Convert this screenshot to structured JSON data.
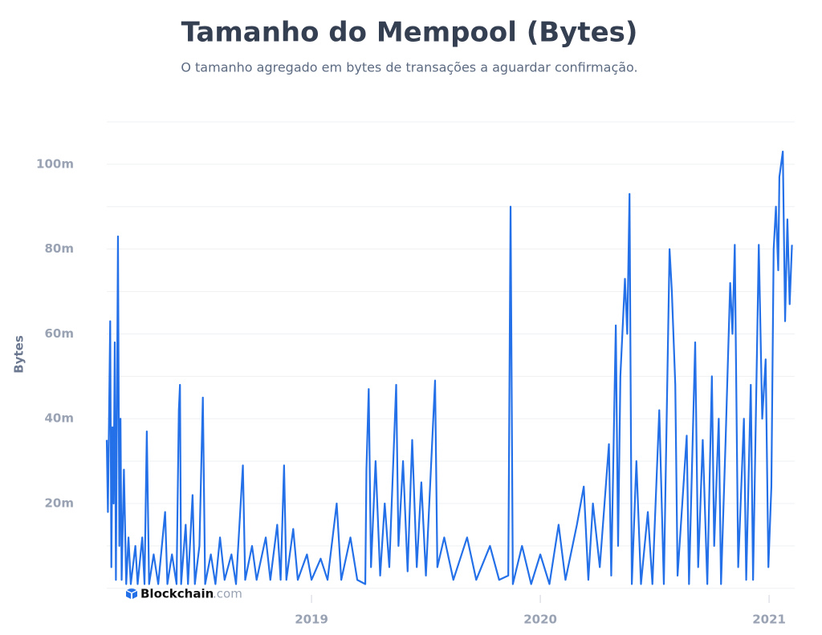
{
  "chart_data": {
    "type": "line",
    "title": "Tamanho do Mempool (Bytes)",
    "subtitle": "O tamanho agregado em bytes de transações a aguardar confirmação.",
    "y_axis_label": "Bytes",
    "watermark": {
      "brand": "Blockchain",
      "suffix": ".com"
    },
    "x": [
      2018.105,
      2018.11,
      2018.12,
      2018.125,
      2018.13,
      2018.135,
      2018.14,
      2018.145,
      2018.154,
      2018.16,
      2018.165,
      2018.17,
      2018.18,
      2018.19,
      2018.2,
      2018.21,
      2018.23,
      2018.24,
      2018.26,
      2018.27,
      2018.28,
      2018.29,
      2018.31,
      2018.33,
      2018.36,
      2018.37,
      2018.39,
      2018.41,
      2018.42,
      2018.425,
      2018.43,
      2018.45,
      2018.46,
      2018.48,
      2018.49,
      2018.51,
      2018.525,
      2018.535,
      2018.56,
      2018.58,
      2018.6,
      2018.62,
      2018.65,
      2018.67,
      2018.7,
      2018.71,
      2018.74,
      2018.76,
      2018.8,
      2018.82,
      2018.85,
      2018.865,
      2018.88,
      2018.89,
      2018.92,
      2018.94,
      2018.98,
      2019.0,
      2019.04,
      2019.07,
      2019.11,
      2019.13,
      2019.17,
      2019.2,
      2019.235,
      2019.24,
      2019.25,
      2019.26,
      2019.28,
      2019.3,
      2019.32,
      2019.34,
      2019.37,
      2019.38,
      2019.4,
      2019.42,
      2019.44,
      2019.46,
      2019.48,
      2019.5,
      2019.54,
      2019.55,
      2019.58,
      2019.62,
      2019.68,
      2019.72,
      2019.78,
      2019.82,
      2019.86,
      2019.87,
      2019.88,
      2019.92,
      2019.96,
      2020.0,
      2020.04,
      2020.08,
      2020.11,
      2020.16,
      2020.19,
      2020.21,
      2020.23,
      2020.26,
      2020.3,
      2020.31,
      2020.33,
      2020.34,
      2020.35,
      2020.37,
      2020.38,
      2020.39,
      2020.4,
      2020.42,
      2020.44,
      2020.47,
      2020.49,
      2020.52,
      2020.54,
      2020.565,
      2020.575,
      2020.59,
      2020.6,
      2020.64,
      2020.65,
      2020.677,
      2020.69,
      2020.71,
      2020.73,
      2020.75,
      2020.76,
      2020.78,
      2020.79,
      2020.81,
      2020.83,
      2020.84,
      2020.85,
      2020.865,
      2020.89,
      2020.9,
      2020.92,
      2020.93,
      2020.955,
      2020.97,
      2020.985,
      2020.997,
      2021.01,
      2021.02,
      2021.03,
      2021.04,
      2021.045,
      2021.06,
      2021.07,
      2021.08,
      2021.09,
      2021.1
    ],
    "series": [
      {
        "name": "Bytes",
        "color": "#2470e8",
        "values": [
          35,
          18,
          63,
          5,
          38,
          20,
          58,
          2,
          83,
          10,
          40,
          2,
          28,
          1,
          12,
          1,
          10,
          1,
          12,
          1,
          37,
          1,
          8,
          1,
          18,
          1,
          8,
          1,
          42,
          48,
          1,
          15,
          1,
          22,
          1,
          10,
          45,
          1,
          8,
          1,
          12,
          2,
          8,
          1,
          29,
          2,
          10,
          2,
          12,
          2,
          15,
          2,
          29,
          2,
          14,
          2,
          8,
          2,
          7,
          2,
          20,
          2,
          12,
          2,
          1,
          28,
          47,
          5,
          30,
          3,
          20,
          5,
          48,
          10,
          30,
          4,
          35,
          5,
          25,
          3,
          49,
          5,
          12,
          2,
          12,
          2,
          10,
          2,
          3,
          90,
          1,
          10,
          1,
          8,
          1,
          15,
          2,
          15,
          24,
          2,
          20,
          5,
          34,
          3,
          62,
          10,
          50,
          73,
          60,
          93,
          1,
          30,
          1,
          18,
          1,
          42,
          1,
          80,
          70,
          48,
          3,
          36,
          1,
          58,
          5,
          35,
          1,
          50,
          10,
          40,
          1,
          35,
          72,
          60,
          81,
          5,
          40,
          2,
          48,
          2,
          81,
          40,
          54,
          5,
          24,
          80,
          90,
          75,
          97,
          103,
          63,
          87,
          67,
          81
        ]
      }
    ],
    "xlim": [
      2018.105,
      2021.112
    ],
    "xticks": [
      2019,
      2020,
      2021
    ],
    "ylim": [
      0,
      110
    ],
    "yticks": [
      {
        "value": 20,
        "label": "20m"
      },
      {
        "value": 40,
        "label": "40m"
      },
      {
        "value": 60,
        "label": "60m"
      },
      {
        "value": 80,
        "label": "80m"
      },
      {
        "value": 100,
        "label": "100m"
      }
    ],
    "minor_grid": [
      0,
      10,
      30,
      50,
      70,
      90,
      110
    ],
    "grid": true
  }
}
